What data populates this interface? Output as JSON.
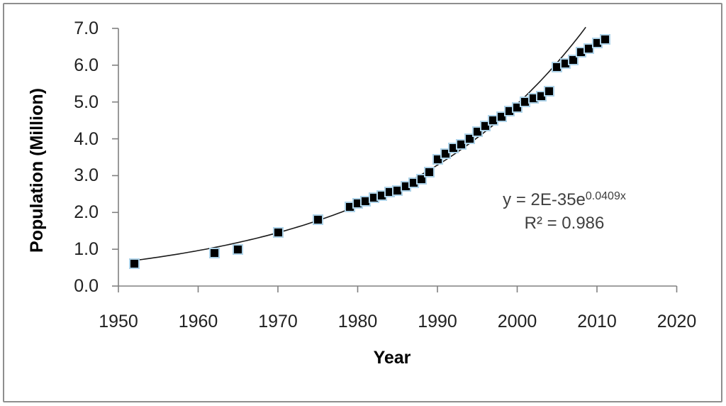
{
  "window": {
    "background_color": "#ffffff",
    "frame_border_color": "#8e8e8e"
  },
  "chart_data": {
    "type": "scatter",
    "title": "",
    "xlabel": "Year",
    "ylabel": "Population (Million)",
    "xlim": [
      1950,
      2020
    ],
    "ylim": [
      0.0,
      7.0
    ],
    "x_tick_labels": [
      "1950",
      "1960",
      "1970",
      "1980",
      "1990",
      "2000",
      "2010",
      "2020"
    ],
    "y_tick_labels": [
      "0.0",
      "1.0",
      "2.0",
      "3.0",
      "4.0",
      "5.0",
      "6.0",
      "7.0"
    ],
    "grid": false,
    "legend": false,
    "axis_color": "#808080",
    "tick_label_color": "#212121",
    "marker_style": {
      "shape": "square",
      "fill": "#000000",
      "outline": "#add2e8"
    },
    "series": [
      {
        "name": "Population (Million)",
        "points": [
          [
            1952,
            0.6
          ],
          [
            1962,
            0.9
          ],
          [
            1965,
            1.0
          ],
          [
            1970,
            1.45
          ],
          [
            1975,
            1.8
          ],
          [
            1979,
            2.15
          ],
          [
            1980,
            2.25
          ],
          [
            1981,
            2.3
          ],
          [
            1982,
            2.4
          ],
          [
            1983,
            2.45
          ],
          [
            1984,
            2.55
          ],
          [
            1985,
            2.6
          ],
          [
            1986,
            2.7
          ],
          [
            1987,
            2.8
          ],
          [
            1988,
            2.9
          ],
          [
            1989,
            3.1
          ],
          [
            1990,
            3.45
          ],
          [
            1991,
            3.6
          ],
          [
            1992,
            3.75
          ],
          [
            1993,
            3.85
          ],
          [
            1994,
            4.0
          ],
          [
            1995,
            4.2
          ],
          [
            1996,
            4.35
          ],
          [
            1997,
            4.5
          ],
          [
            1998,
            4.6
          ],
          [
            1999,
            4.75
          ],
          [
            2000,
            4.85
          ],
          [
            2001,
            5.0
          ],
          [
            2002,
            5.1
          ],
          [
            2003,
            5.15
          ],
          [
            2004,
            5.3
          ],
          [
            2005,
            5.95
          ],
          [
            2006,
            6.05
          ],
          [
            2007,
            6.15
          ],
          [
            2008,
            6.35
          ],
          [
            2009,
            6.45
          ],
          [
            2010,
            6.6
          ],
          [
            2011,
            6.7
          ]
        ]
      }
    ],
    "trendline": {
      "type": "exponential",
      "equation_prefix": "y = 2E-35e",
      "equation_exponent": "0.0409x",
      "r_squared": "R² = 0.986",
      "growth_rate": 0.0409,
      "value_at_1950": 0.64,
      "year_start": 1952,
      "year_end": 2008.6,
      "color": "#1a1a1a",
      "label_color": "#3f3f3f"
    }
  }
}
